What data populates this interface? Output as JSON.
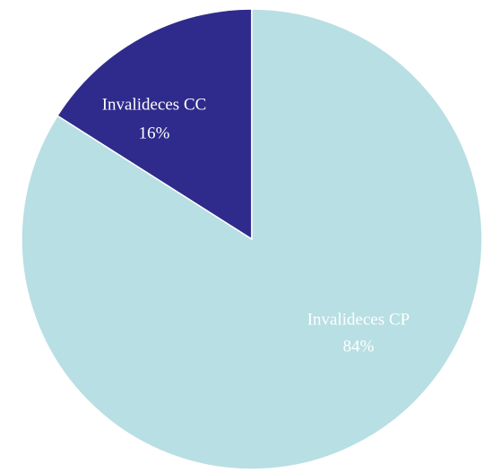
{
  "chart_data": {
    "type": "pie",
    "categories": [
      "Invalideces CC",
      "Invalideces CP"
    ],
    "values": [
      16,
      84
    ],
    "value_labels": [
      "16%",
      "84%"
    ],
    "colors": [
      "#2f2b8c",
      "#b8dfe3"
    ]
  }
}
